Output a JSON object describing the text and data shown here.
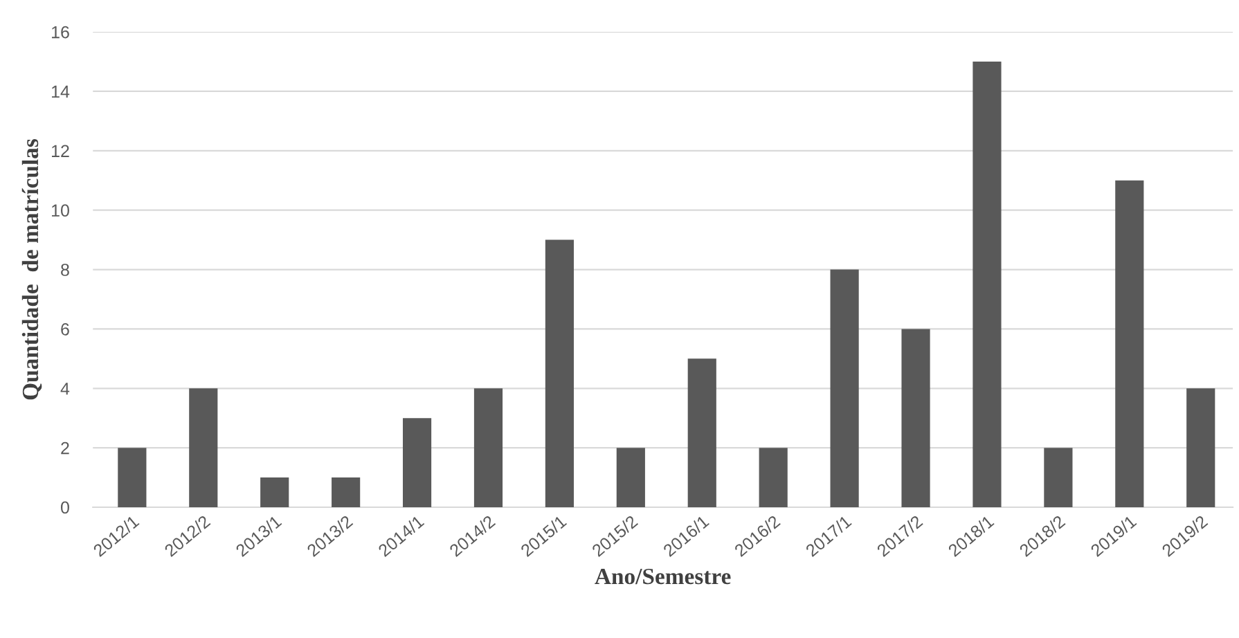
{
  "chart_data": {
    "type": "bar",
    "xlabel": "Ano/Semestre",
    "ylabel": "Quantidade  de matrículas",
    "categories": [
      "2012/1",
      "2012/2",
      "2013/1",
      "2013/2",
      "2014/1",
      "2014/2",
      "2015/1",
      "2015/2",
      "2016/1",
      "2016/2",
      "2017/1",
      "2017/2",
      "2018/1",
      "2018/2",
      "2019/1",
      "2019/2"
    ],
    "values": [
      2,
      4,
      1,
      1,
      3,
      4,
      9,
      2,
      5,
      2,
      8,
      6,
      15,
      2,
      11,
      4
    ],
    "color": "#595959",
    "ylim": [
      0,
      16
    ],
    "yticks": [
      0,
      2,
      4,
      6,
      8,
      10,
      12,
      14,
      16
    ],
    "grid": "y"
  }
}
